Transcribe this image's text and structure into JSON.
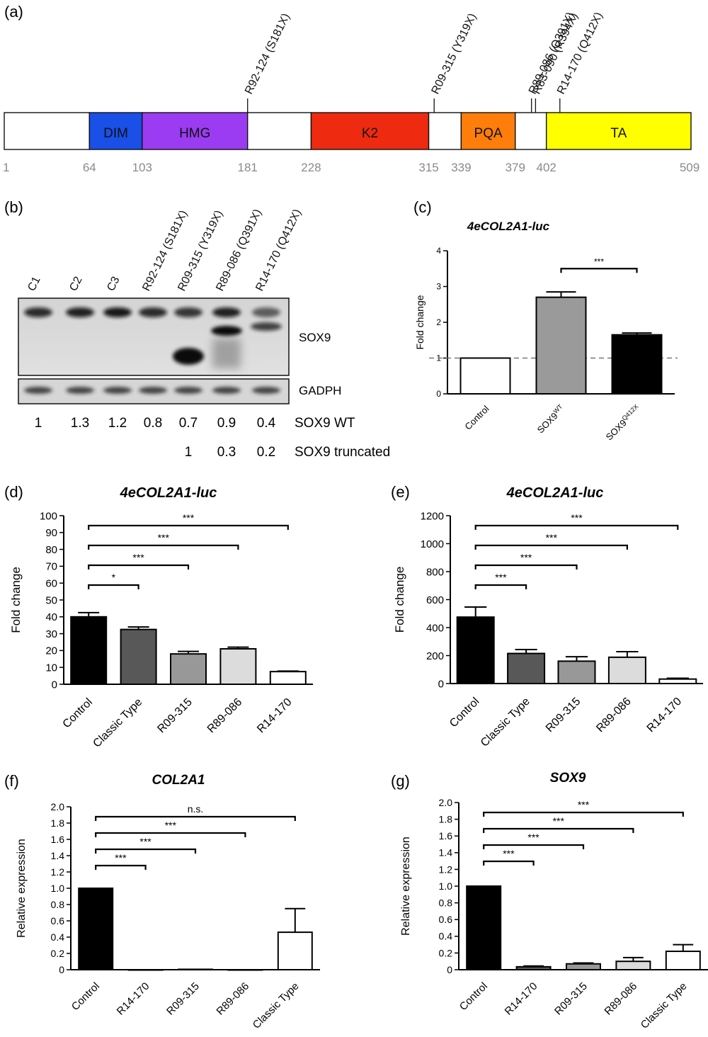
{
  "panel_a": {
    "label": "(a)",
    "length": 509,
    "domains": [
      {
        "name": "",
        "start": 1,
        "end": 64,
        "color": "#ffffff"
      },
      {
        "name": "DIM",
        "start": 64,
        "end": 103,
        "color": "#1a4fe8"
      },
      {
        "name": "HMG",
        "start": 103,
        "end": 181,
        "color": "#9b3cf2"
      },
      {
        "name": "",
        "start": 181,
        "end": 228,
        "color": "#ffffff"
      },
      {
        "name": "K2",
        "start": 228,
        "end": 315,
        "color": "#ee2a10"
      },
      {
        "name": "",
        "start": 315,
        "end": 339,
        "color": "#ffffff"
      },
      {
        "name": "PQA",
        "start": 339,
        "end": 379,
        "color": "#ff7d0a"
      },
      {
        "name": "",
        "start": 379,
        "end": 402,
        "color": "#ffffff"
      },
      {
        "name": "TA",
        "start": 402,
        "end": 509,
        "color": "#ffff00"
      }
    ],
    "positions": [
      "1",
      "64",
      "103",
      "181",
      "228",
      "315",
      "339",
      "379",
      "402",
      "509"
    ],
    "mutations": [
      {
        "label": "R92-124 (S181X)",
        "pos": 181
      },
      {
        "label": "R09-315 (Y319X)",
        "pos": 319
      },
      {
        "label": "R89-086 (Q391X)",
        "pos": 391
      },
      {
        "label": "R83-090 (R394X)",
        "pos": 394
      },
      {
        "label": "R14-170 (Q412X)",
        "pos": 412
      }
    ]
  },
  "panel_b": {
    "label": "(b)",
    "lanes": [
      "C1",
      "C2",
      "C3",
      "R92-124 (S181X)",
      "R09-315 (Y319X)",
      "R89-086 (Q391X)",
      "R14-170 (Q412X)"
    ],
    "blot_labels": [
      "SOX9",
      "GADPH"
    ],
    "wt_label": "SOX9 WT",
    "wt_values": [
      "1",
      "1.3",
      "1.2",
      "0.8",
      "0.7",
      "0.9",
      "0.4"
    ],
    "truncated_label": "SOX9 truncated",
    "truncated_values": [
      "",
      "",
      "",
      "",
      "1",
      "0.3",
      "0.2"
    ]
  },
  "chart_data": [
    {
      "panel": "(c)",
      "type": "bar",
      "title": "4eCOL2A1-luc",
      "ylabel": "Fold change",
      "ylim": [
        0,
        4
      ],
      "yticks": [
        "0",
        "1",
        "2",
        "3",
        "4"
      ],
      "categories": [
        "Control",
        "SOX9WT",
        "SOX9Q412X"
      ],
      "category_base": [
        "Control",
        "SOX9",
        "SOX9"
      ],
      "category_sup": [
        "",
        "WT",
        "Q412X"
      ],
      "values": [
        1.0,
        2.7,
        1.65
      ],
      "errors": [
        0,
        0.15,
        0.05
      ],
      "colors": [
        "#ffffff",
        "#9a9a9a",
        "#000000"
      ],
      "reference_line": 1,
      "significance": [
        {
          "from": 1,
          "to": 2,
          "text": "***"
        }
      ]
    },
    {
      "panel": "(d)",
      "type": "bar",
      "title": "4eCOL2A1-luc",
      "ylabel": "Fold change",
      "ylim": [
        0,
        100
      ],
      "yticks": [
        "0",
        "10",
        "20",
        "30",
        "40",
        "50",
        "60",
        "70",
        "80",
        "90",
        "100"
      ],
      "categories": [
        "Control",
        "Classic Type",
        "R09-315",
        "R89-086",
        "R14-170"
      ],
      "values": [
        40,
        32.5,
        18,
        21,
        7.5
      ],
      "errors": [
        2.5,
        1.5,
        1.5,
        1.0,
        0.3
      ],
      "colors": [
        "#000000",
        "#585858",
        "#989898",
        "#dcdcdc",
        "#ffffff"
      ],
      "significance": [
        {
          "from": 0,
          "to": 1,
          "text": "*"
        },
        {
          "from": 0,
          "to": 2,
          "text": "***"
        },
        {
          "from": 0,
          "to": 3,
          "text": "***"
        },
        {
          "from": 0,
          "to": 4,
          "text": "***"
        }
      ]
    },
    {
      "panel": "(e)",
      "type": "bar",
      "title": "4eCOL2A1-luc",
      "ylabel": "Fold change",
      "ylim": [
        0,
        1200
      ],
      "yticks": [
        "0",
        "200",
        "400",
        "600",
        "800",
        "1000",
        "1200"
      ],
      "categories": [
        "Control",
        "Classic Type",
        "R09-315",
        "R89-086",
        "R14-170"
      ],
      "values": [
        475,
        215,
        160,
        188,
        32
      ],
      "errors": [
        72,
        28,
        32,
        40,
        6
      ],
      "colors": [
        "#000000",
        "#585858",
        "#989898",
        "#dcdcdc",
        "#ffffff"
      ],
      "significance": [
        {
          "from": 0,
          "to": 1,
          "text": "***"
        },
        {
          "from": 0,
          "to": 2,
          "text": "***"
        },
        {
          "from": 0,
          "to": 3,
          "text": "***"
        },
        {
          "from": 0,
          "to": 4,
          "text": "***"
        }
      ]
    },
    {
      "panel": "(f)",
      "type": "bar",
      "title": "COL2A1",
      "ylabel": "Relative expression",
      "ylim": [
        0,
        2.0
      ],
      "yticks": [
        "0",
        "0.2",
        "0.4",
        "0.6",
        "0.8",
        "1.0",
        "1.2",
        "1.4",
        "1.6",
        "1.8",
        "2.0"
      ],
      "categories": [
        "Control",
        "R14-170",
        "R09-315",
        "R89-086",
        "Classic Type"
      ],
      "values": [
        1.0,
        0.0,
        0.005,
        0.0,
        0.46
      ],
      "errors": [
        0,
        0,
        0,
        0,
        0.29
      ],
      "colors": [
        "#000000",
        "#585858",
        "#989898",
        "#dcdcdc",
        "#ffffff"
      ],
      "significance": [
        {
          "from": 0,
          "to": 1,
          "text": "***"
        },
        {
          "from": 0,
          "to": 2,
          "text": "***"
        },
        {
          "from": 0,
          "to": 3,
          "text": "***"
        },
        {
          "from": 0,
          "to": 4,
          "text": "n.s."
        }
      ]
    },
    {
      "panel": "(g)",
      "type": "bar",
      "title": "SOX9",
      "ylabel": "Relative expression",
      "ylim": [
        0,
        2.0
      ],
      "yticks": [
        "0",
        "0.2",
        "0.4",
        "0.6",
        "0.8",
        "1.0",
        "1.2",
        "1.4",
        "1.6",
        "1.8",
        "2.0"
      ],
      "categories": [
        "Control",
        "R14-170",
        "R09-315",
        "R89-086",
        "Classic Type"
      ],
      "values": [
        1.0,
        0.035,
        0.07,
        0.1,
        0.22
      ],
      "errors": [
        0,
        0.01,
        0.01,
        0.045,
        0.08
      ],
      "colors": [
        "#000000",
        "#585858",
        "#989898",
        "#dcdcdc",
        "#ffffff"
      ],
      "significance": [
        {
          "from": 0,
          "to": 1,
          "text": "***"
        },
        {
          "from": 0,
          "to": 2,
          "text": "***"
        },
        {
          "from": 0,
          "to": 3,
          "text": "***"
        },
        {
          "from": 0,
          "to": 4,
          "text": "***"
        }
      ]
    }
  ]
}
